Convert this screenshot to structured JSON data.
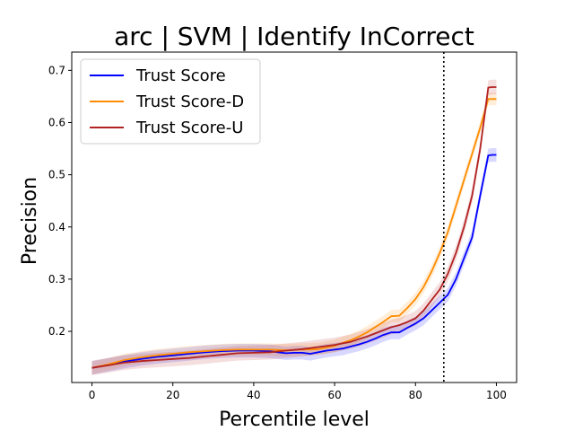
{
  "chart_data": {
    "type": "line",
    "title": "arc | SVM | Identify InCorrect",
    "xlabel": "Percentile level",
    "ylabel": "Precision",
    "xlim": [
      -5,
      105
    ],
    "ylim": [
      0.102,
      0.735
    ],
    "xticks": [
      0,
      20,
      40,
      60,
      80,
      100
    ],
    "yticks": [
      0.2,
      0.3,
      0.4,
      0.5,
      0.6,
      0.7
    ],
    "grid": false,
    "legend_position": "top-left",
    "vline": {
      "x": 87,
      "style": "dotted",
      "color": "#000000"
    },
    "series": [
      {
        "name": "Trust Score",
        "color": "#0000ff",
        "x": [
          0,
          4,
          8,
          12,
          16,
          20,
          24,
          28,
          32,
          36,
          40,
          44,
          46,
          48,
          50,
          52,
          54,
          56,
          58,
          60,
          62,
          64,
          66,
          68,
          70,
          72,
          74,
          76,
          78,
          80,
          82,
          84,
          86,
          88,
          90,
          92,
          94,
          96,
          98,
          99,
          100
        ],
        "y": [
          0.13,
          0.136,
          0.142,
          0.147,
          0.151,
          0.154,
          0.157,
          0.16,
          0.162,
          0.163,
          0.163,
          0.162,
          0.16,
          0.158,
          0.159,
          0.159,
          0.157,
          0.16,
          0.163,
          0.165,
          0.167,
          0.171,
          0.175,
          0.18,
          0.186,
          0.193,
          0.198,
          0.198,
          0.207,
          0.215,
          0.225,
          0.24,
          0.255,
          0.27,
          0.3,
          0.34,
          0.38,
          0.46,
          0.537,
          0.538,
          0.538
        ],
        "band": 0.013
      },
      {
        "name": "Trust Score-D",
        "color": "#ff8c00",
        "x": [
          0,
          4,
          8,
          12,
          16,
          20,
          24,
          28,
          32,
          36,
          40,
          44,
          48,
          52,
          56,
          60,
          62,
          64,
          66,
          68,
          70,
          72,
          74,
          76,
          78,
          80,
          82,
          84,
          86,
          88,
          90,
          92,
          94,
          96,
          98,
          99,
          100
        ],
        "y": [
          0.13,
          0.137,
          0.145,
          0.15,
          0.154,
          0.157,
          0.16,
          0.162,
          0.164,
          0.165,
          0.165,
          0.165,
          0.164,
          0.165,
          0.166,
          0.172,
          0.178,
          0.183,
          0.19,
          0.198,
          0.208,
          0.218,
          0.229,
          0.23,
          0.245,
          0.262,
          0.285,
          0.315,
          0.35,
          0.39,
          0.44,
          0.49,
          0.54,
          0.59,
          0.645,
          0.645,
          0.645
        ],
        "band": 0.012
      },
      {
        "name": "Trust Score-U",
        "color": "#b22222",
        "x": [
          0,
          4,
          8,
          12,
          16,
          20,
          24,
          28,
          32,
          36,
          40,
          44,
          48,
          52,
          56,
          60,
          62,
          64,
          66,
          68,
          70,
          72,
          74,
          76,
          78,
          80,
          82,
          84,
          86,
          88,
          90,
          92,
          94,
          96,
          98,
          99,
          100
        ],
        "y": [
          0.13,
          0.135,
          0.14,
          0.143,
          0.145,
          0.147,
          0.149,
          0.152,
          0.155,
          0.158,
          0.159,
          0.16,
          0.163,
          0.166,
          0.17,
          0.174,
          0.177,
          0.18,
          0.185,
          0.19,
          0.196,
          0.202,
          0.208,
          0.212,
          0.218,
          0.225,
          0.24,
          0.26,
          0.28,
          0.31,
          0.35,
          0.4,
          0.46,
          0.55,
          0.667,
          0.668,
          0.668
        ],
        "band": 0.014
      }
    ]
  }
}
